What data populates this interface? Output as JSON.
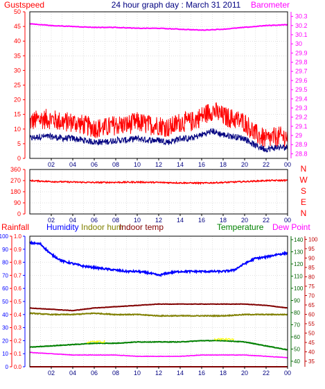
{
  "header": {
    "title": "24 hour graph day : March 31 2011",
    "left_label": "Gustspeed",
    "right_label": "Barometer"
  },
  "bottom_header": {
    "labels": [
      "Rainfall",
      "Humidity",
      "Indoor hum",
      "Indoor temp",
      "Temperature",
      "Dew Point"
    ]
  },
  "colors": {
    "red": "#ff0000",
    "magenta": "#ff00ff",
    "blue": "#0000ff",
    "navy": "#000080",
    "olive": "#808000",
    "maroon": "#800000",
    "darkred": "#c00000",
    "green": "#008000",
    "yellow": "#ffff00",
    "darkgreen": "#006400",
    "grid": "#c0c0c0"
  },
  "chart_data": [
    {
      "type": "line",
      "panel": "wind-barometer",
      "x_ticks": [
        "02",
        "04",
        "06",
        "08",
        "10",
        "12",
        "14",
        "16",
        "18",
        "20",
        "22",
        "00"
      ],
      "y_left": {
        "label": "Gustspeed",
        "ticks": [
          0,
          5,
          10,
          15,
          20,
          25,
          30,
          35,
          40,
          45,
          50
        ],
        "range": [
          0,
          50
        ]
      },
      "y_right": {
        "label": "Barometer",
        "ticks": [
          "28.8",
          "28.9",
          "29",
          "29.1",
          "29.2",
          "29.3",
          "29.4",
          "29.5",
          "29.6",
          "29.7",
          "29.8",
          "29.9",
          "30",
          "30.1",
          "30.2",
          "30.3"
        ],
        "range": [
          28.75,
          30.35
        ]
      },
      "series": [
        {
          "name": "Gustspeed",
          "color": "#ff0000",
          "axis": "left",
          "x": [
            0,
            1,
            2,
            3,
            4,
            5,
            6,
            7,
            8,
            9,
            10,
            11,
            12,
            13,
            14,
            15,
            16,
            17,
            18,
            19,
            20,
            21,
            22,
            23,
            24
          ],
          "y": [
            11,
            12,
            12,
            11,
            11,
            10,
            9,
            9,
            10,
            10,
            11,
            10,
            10,
            9,
            11,
            11,
            13,
            15,
            13,
            12,
            11,
            7,
            5,
            6,
            6
          ]
        },
        {
          "name": "Barometer",
          "color": "#ff00ff",
          "axis": "right",
          "x": [
            0,
            2,
            4,
            6,
            8,
            10,
            12,
            14,
            16,
            18,
            20,
            22,
            24
          ],
          "y": [
            30.22,
            30.2,
            30.19,
            30.18,
            30.18,
            30.17,
            30.17,
            30.16,
            30.15,
            30.16,
            30.18,
            30.2,
            30.21
          ]
        }
      ]
    },
    {
      "type": "line",
      "panel": "wind-direction",
      "x_ticks": [
        "02",
        "04",
        "06",
        "08",
        "10",
        "12",
        "14",
        "16",
        "18",
        "20",
        "22",
        "00"
      ],
      "y_left": {
        "ticks": [
          0,
          90,
          180,
          270,
          360
        ],
        "range": [
          0,
          360
        ]
      },
      "y_right": {
        "ticks": [
          "N",
          "W",
          "S",
          "E",
          "N"
        ]
      },
      "series": [
        {
          "name": "Wind direction",
          "color": "#ff0000",
          "x": [
            0,
            2,
            4,
            6,
            8,
            10,
            12,
            14,
            16,
            18,
            20,
            22,
            24
          ],
          "y": [
            270,
            262,
            258,
            255,
            256,
            258,
            255,
            252,
            250,
            255,
            262,
            270,
            272
          ]
        }
      ]
    },
    {
      "type": "line",
      "panel": "temperature-humidity",
      "x_ticks": [
        "02",
        "04",
        "06",
        "08",
        "10",
        "12",
        "14",
        "16",
        "18",
        "20",
        "22",
        "00"
      ],
      "y_axes": {
        "rainfall": {
          "ticks": [
            0,
            10,
            20,
            30,
            40,
            50,
            60,
            70,
            80,
            90,
            100
          ]
        },
        "humidity": {
          "ticks": [
            0.0,
            0.1,
            0.2,
            0.3,
            0.4,
            0.5,
            0.6,
            0.7,
            0.8,
            0.9,
            1.0
          ]
        },
        "temperature": {
          "ticks": [
            40,
            50,
            60,
            70,
            80,
            90,
            100,
            110,
            120,
            130,
            140
          ]
        },
        "dew_point": {
          "ticks": [
            35,
            40,
            45,
            50,
            55,
            60,
            65,
            70,
            75,
            80,
            85,
            90,
            95,
            100
          ]
        }
      },
      "series": [
        {
          "name": "Humidity",
          "color": "#0000ff",
          "x": [
            0,
            1,
            2,
            3,
            4,
            5,
            6,
            7,
            8,
            9,
            10,
            11,
            12,
            13,
            14,
            15,
            16,
            17,
            18,
            19,
            20,
            21,
            22,
            23,
            24
          ],
          "y": [
            95,
            94,
            86,
            81,
            79,
            77,
            76,
            75,
            74,
            73,
            73,
            72,
            70,
            72,
            73,
            73,
            73,
            73,
            73,
            74,
            79,
            83,
            84,
            86,
            87
          ]
        },
        {
          "name": "Indoor hum",
          "color": "#808000",
          "x": [
            0,
            2,
            4,
            6,
            8,
            10,
            12,
            14,
            16,
            18,
            20,
            22,
            24
          ],
          "y": [
            41,
            40,
            40,
            41,
            40,
            40,
            39,
            39,
            39,
            39,
            40,
            40,
            40
          ]
        },
        {
          "name": "Indoor temp",
          "color": "#800000",
          "x": [
            0,
            2,
            4,
            6,
            8,
            10,
            12,
            14,
            16,
            18,
            20,
            22,
            24
          ],
          "y": [
            45,
            44,
            43,
            45,
            46,
            47,
            48,
            48,
            48,
            48,
            48,
            47,
            45
          ]
        },
        {
          "name": "Temperature",
          "color": "#008000",
          "x": [
            0,
            2,
            4,
            6,
            8,
            10,
            12,
            14,
            16,
            18,
            20,
            22,
            24
          ],
          "y": [
            15,
            16,
            17,
            18,
            18,
            19,
            19,
            19,
            20,
            20,
            19,
            16,
            13
          ]
        },
        {
          "name": "Dew Point",
          "color": "#ff00ff",
          "x": [
            0,
            2,
            4,
            6,
            8,
            10,
            12,
            14,
            16,
            18,
            20,
            22,
            24
          ],
          "y": [
            11,
            10,
            9,
            9,
            9,
            8,
            8,
            8,
            9,
            9,
            9,
            8,
            7
          ]
        },
        {
          "name": "Rainfall",
          "color": "#ff0000",
          "x": [
            0,
            24
          ],
          "y": [
            0,
            0
          ]
        }
      ]
    }
  ]
}
